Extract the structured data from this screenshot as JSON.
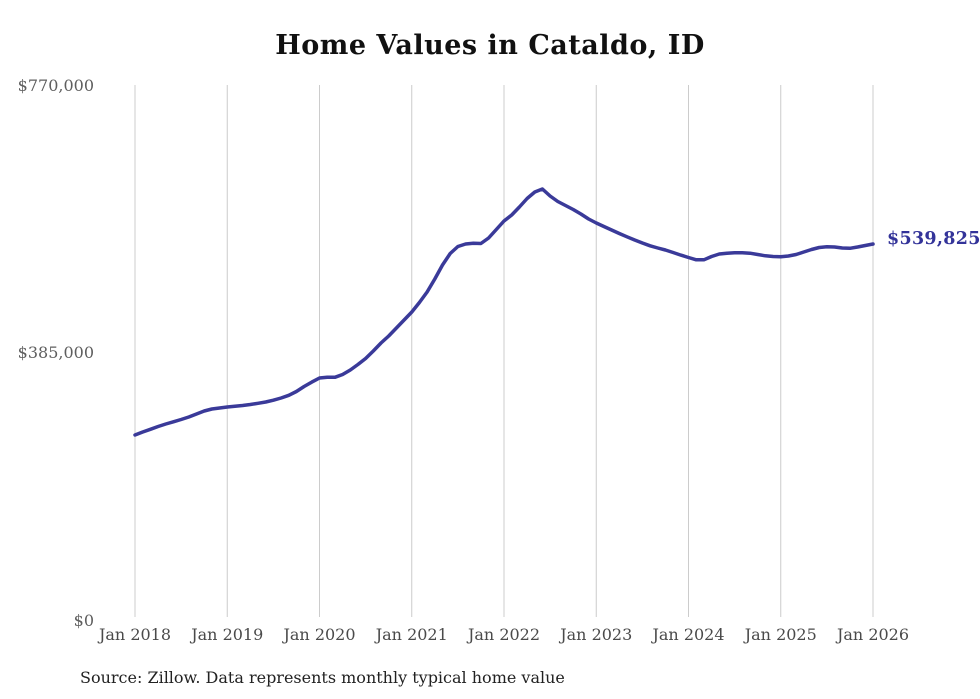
{
  "title": "Home Values in Cataldo, ID",
  "source_note": "Source: Zillow. Data represents monthly typical home value",
  "last_value_label": "$539,825",
  "colors": {
    "line": "#3a3a99",
    "last_value_label": "#333399",
    "grid": "#cccccc",
    "title": "#111111",
    "y_tick_text": "#5e5e5e",
    "x_tick_text": "#4a4a4a",
    "background": "#ffffff"
  },
  "chart_data": {
    "type": "line",
    "title": "Home Values in Cataldo, ID",
    "xlabel": "",
    "ylabel": "",
    "unit": "USD",
    "frequency": "monthly",
    "x_start": "2018-01",
    "x_end": "2026-01",
    "ylim": [
      0,
      770000
    ],
    "grid": "vertical-only",
    "legend": "none",
    "y_tick_labels": [
      "$770,000",
      "$385,000",
      "$0"
    ],
    "y_tick_values": [
      770000,
      385000,
      0
    ],
    "x_tick_labels": [
      "Jan 2018",
      "Jan 2019",
      "Jan 2020",
      "Jan 2021",
      "Jan 2022",
      "Jan 2023",
      "Jan 2024",
      "Jan 2025",
      "Jan 2026"
    ],
    "annotation_last_value": 539825,
    "values": [
      263400,
      267700,
      271700,
      275700,
      279400,
      282500,
      285900,
      289500,
      293800,
      298200,
      301000,
      302500,
      304000,
      305000,
      306100,
      307600,
      309300,
      311200,
      313800,
      317000,
      320900,
      326400,
      333600,
      340000,
      345900,
      346900,
      346900,
      351000,
      357500,
      365400,
      374100,
      385000,
      396600,
      406700,
      418300,
      429900,
      441500,
      455200,
      470400,
      489200,
      509500,
      526100,
      536200,
      539900,
      540900,
      540600,
      548600,
      560900,
      573200,
      581900,
      593400,
      605700,
      615100,
      619500,
      609400,
      601400,
      595600,
      589800,
      583300,
      576100,
      570300,
      565200,
      560100,
      555100,
      550300,
      545700,
      541300,
      537300,
      534100,
      531200,
      527500,
      523800,
      520300,
      517000,
      517000,
      521800,
      525400,
      526600,
      527100,
      527100,
      526600,
      524700,
      522800,
      521800,
      521400,
      522500,
      524700,
      528300,
      531900,
      534800,
      535800,
      535500,
      534100,
      533700,
      535500,
      537700,
      539825
    ]
  }
}
